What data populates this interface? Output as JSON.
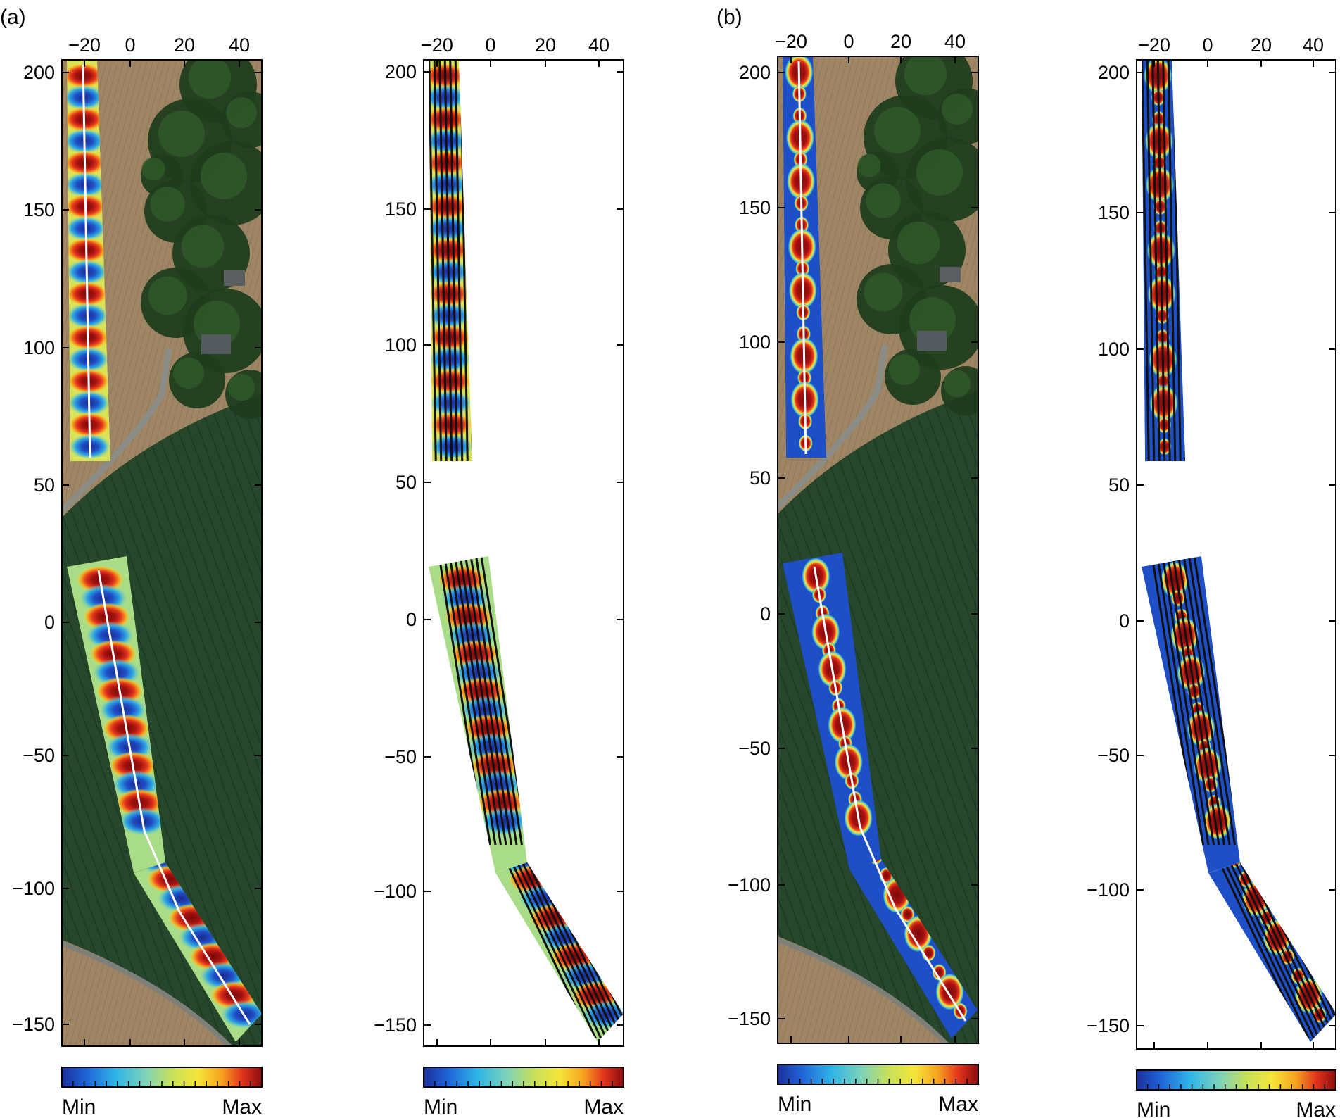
{
  "figure": {
    "panel_labels": [
      "(a)",
      "(b)"
    ],
    "colorbar": {
      "min_label": "Min",
      "max_label": "Max"
    },
    "x_ticks": [
      "−20",
      "0",
      "20",
      "40"
    ],
    "y_ticks": [
      "200",
      "150",
      "100",
      "50",
      "0",
      "−50",
      "−100",
      "−150"
    ]
  },
  "panels": [
    {
      "group": "a",
      "background": "aerial",
      "map": "oscillating",
      "traces": "centerline"
    },
    {
      "group": "a",
      "background": "white",
      "map": "oscillating",
      "traces": "track-lines"
    },
    {
      "group": "b",
      "background": "aerial",
      "map": "peaks",
      "traces": "centerline"
    },
    {
      "group": "b",
      "background": "white",
      "map": "peaks",
      "traces": "track-lines"
    }
  ],
  "colors": {
    "colormap": [
      "#1b2f9b",
      "#1f64d8",
      "#2fb5e6",
      "#7fd3b8",
      "#c6e05a",
      "#f5e63a",
      "#f7a11f",
      "#e3351d",
      "#8a0d0d"
    ],
    "centerline": "#ffffff",
    "track": "#111111",
    "field_dark": "#23452b",
    "field_light": "#a08866"
  }
}
